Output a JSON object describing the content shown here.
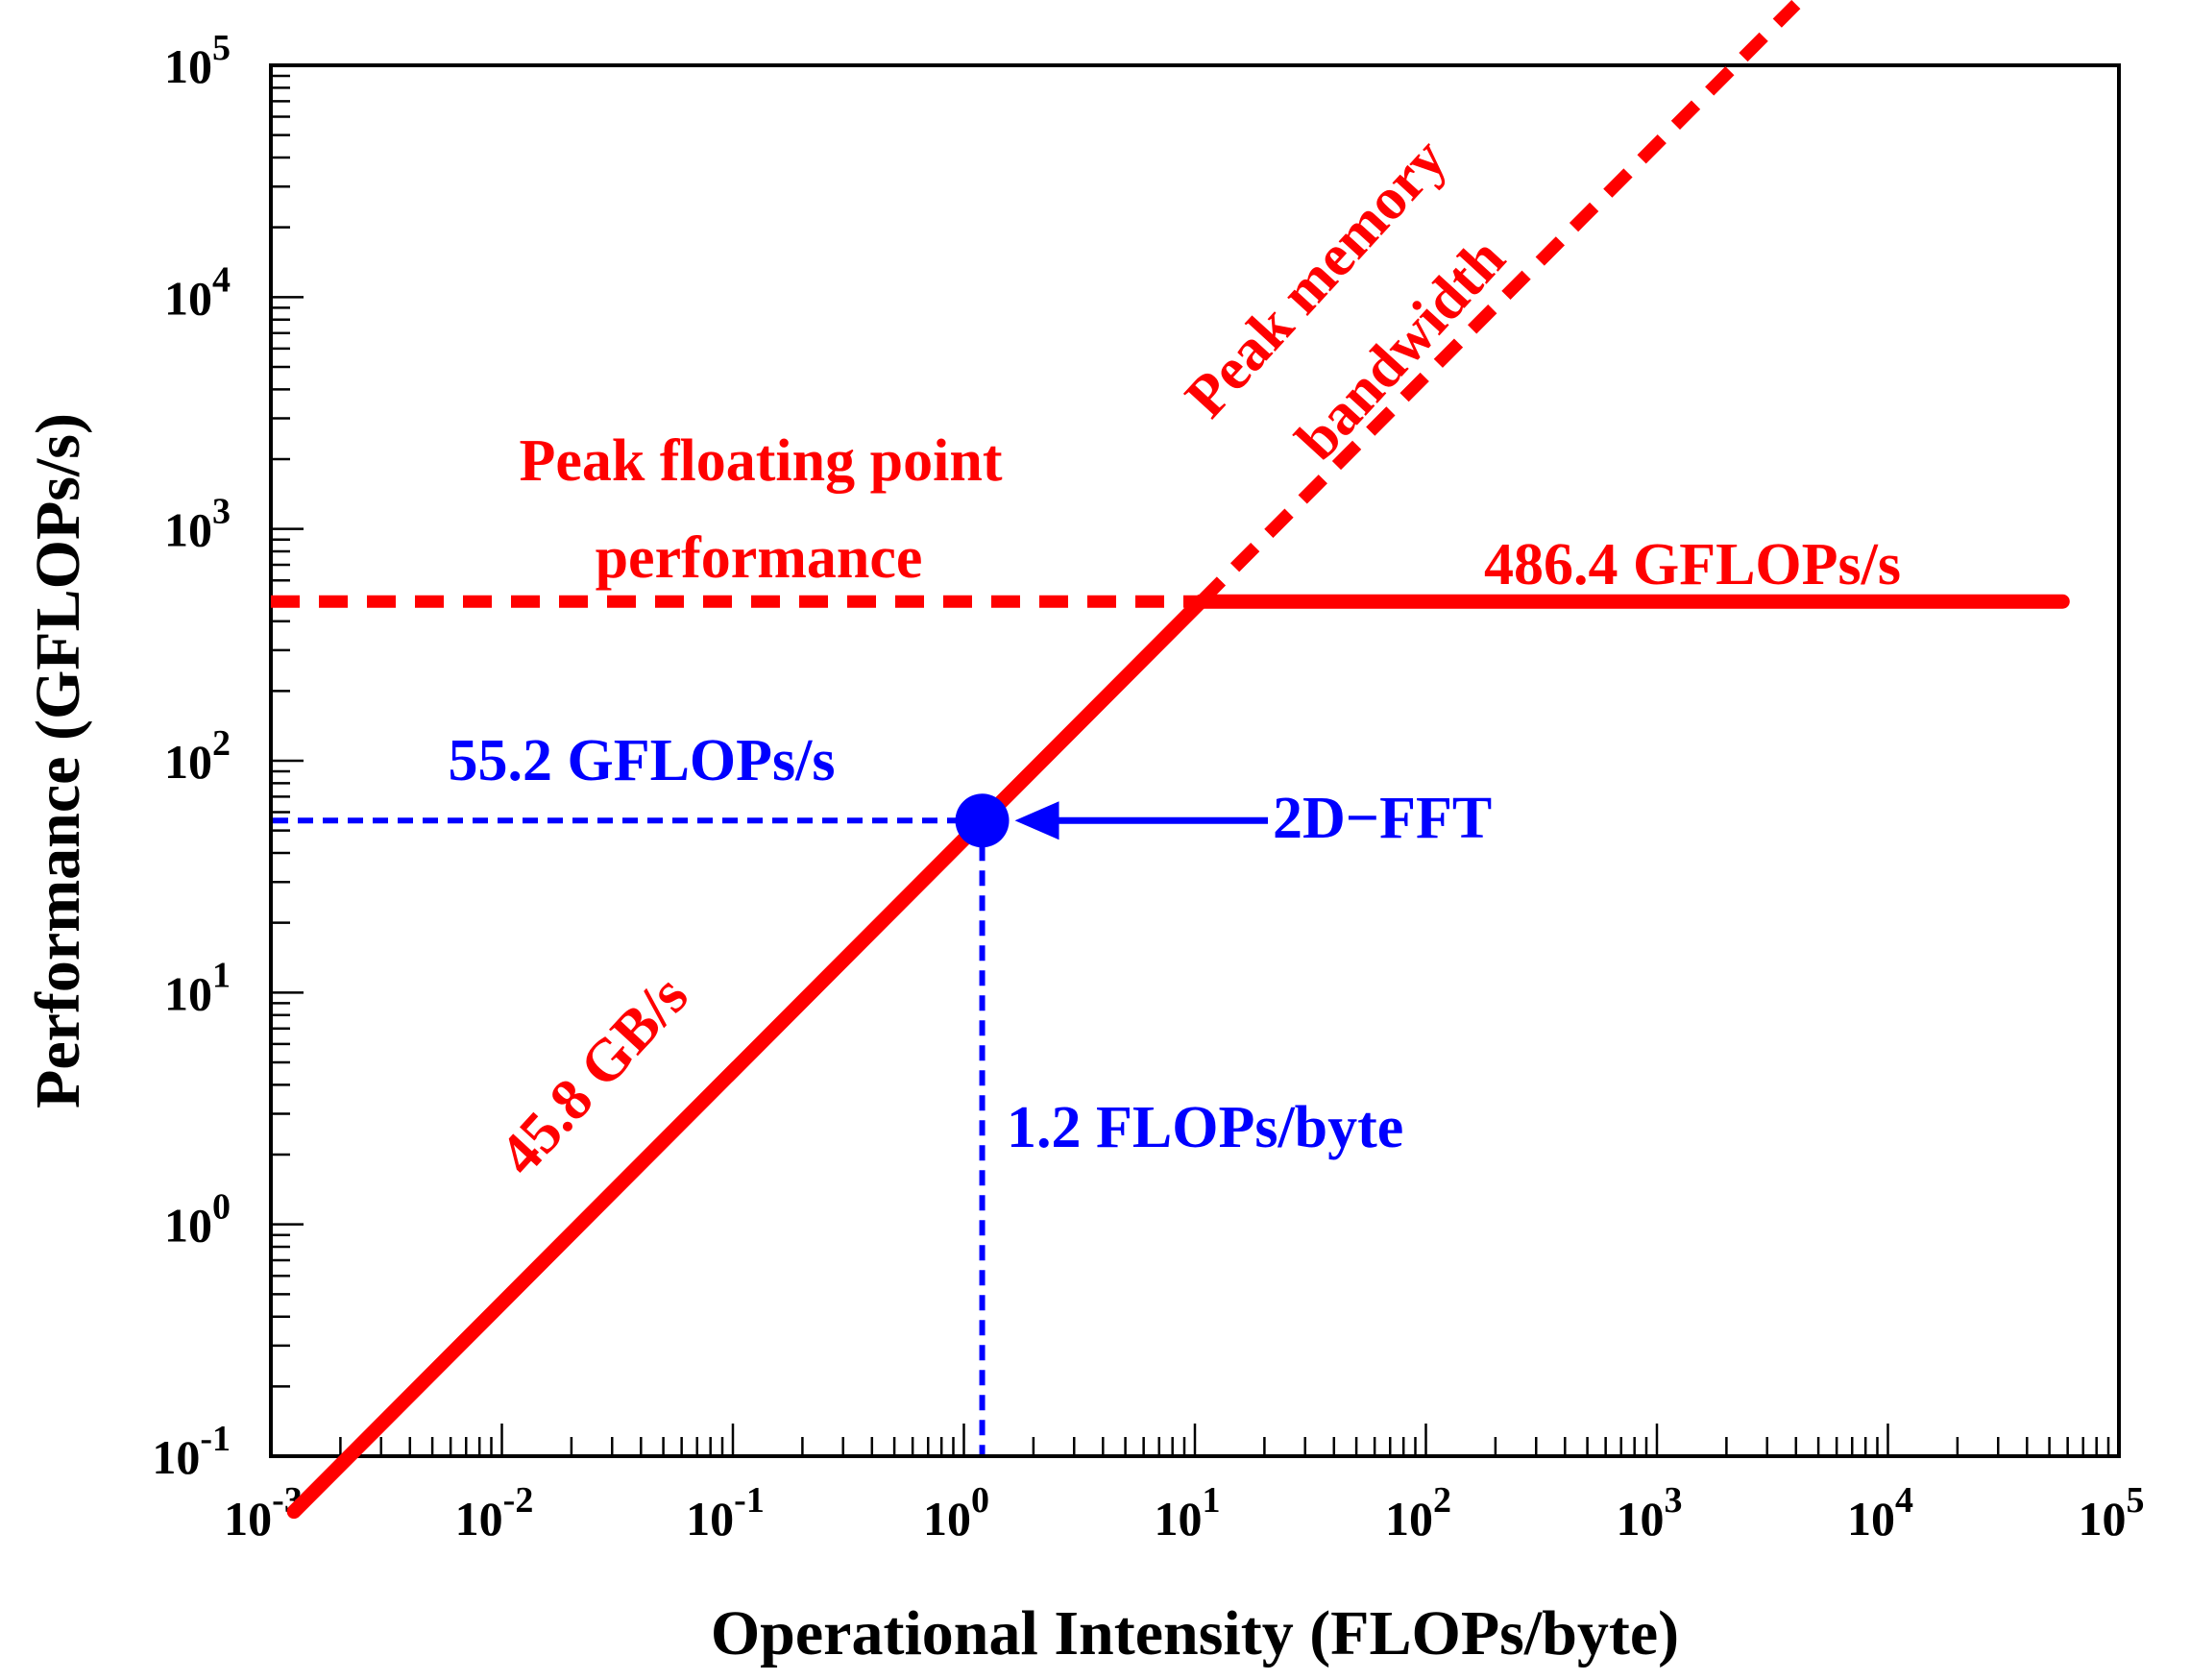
{
  "chart_data": {
    "type": "line",
    "title": "",
    "xlabel": "Operational Intensity (FLOPs/byte)",
    "ylabel": "Performance (GFLOPs/s)",
    "xscale": "log",
    "yscale": "log",
    "xlim_exp": [
      -3,
      5
    ],
    "ylim_exp": [
      -1,
      5
    ],
    "x_tick_labels": [
      {
        "base": "10",
        "exp": "-3"
      },
      {
        "base": "10",
        "exp": "-2"
      },
      {
        "base": "10",
        "exp": "-1"
      },
      {
        "base": "10",
        "exp": "0"
      },
      {
        "base": "10",
        "exp": "1"
      },
      {
        "base": "10",
        "exp": "2"
      },
      {
        "base": "10",
        "exp": "3"
      },
      {
        "base": "10",
        "exp": "4"
      },
      {
        "base": "10",
        "exp": "5"
      }
    ],
    "y_tick_labels": [
      {
        "base": "10",
        "exp": "-1"
      },
      {
        "base": "10",
        "exp": "0"
      },
      {
        "base": "10",
        "exp": "1"
      },
      {
        "base": "10",
        "exp": "2"
      },
      {
        "base": "10",
        "exp": "3"
      },
      {
        "base": "10",
        "exp": "4"
      },
      {
        "base": "10",
        "exp": "5"
      }
    ],
    "peak_compute_gflops": 486.4,
    "peak_bandwidth_gbs": 45.8,
    "series": [
      {
        "name": "memory-bound roof",
        "style": "solid",
        "color": "#ff0000",
        "x": [
          0.00126,
          10.62
        ],
        "y": [
          0.0577,
          486.4
        ]
      },
      {
        "name": "compute-bound roof",
        "style": "solid",
        "color": "#ff0000",
        "x": [
          10.62,
          57000
        ],
        "y": [
          486.4,
          486.4
        ]
      },
      {
        "name": "peak floating point extension",
        "style": "dashed",
        "color": "#ff0000",
        "x": [
          0.001,
          10.62
        ],
        "y": [
          486.4,
          486.4
        ]
      },
      {
        "name": "peak memory bandwidth extension",
        "style": "dashed",
        "color": "#ff0000",
        "x": [
          10.62,
          4000
        ],
        "y": [
          486.4,
          183200
        ]
      }
    ],
    "point": {
      "name": "2D-FFT",
      "x": 1.2,
      "y": 55.2,
      "color": "#0000ff"
    },
    "annotations": {
      "peak_fp_line1": "Peak floating point",
      "peak_fp_line2": "performance",
      "peak_mem_line1": "Peak memory",
      "peak_mem_line2": "bandwidth",
      "peak_value": "486.4 GFLOPs/s",
      "bandwidth_value": "45.8 GB/s",
      "point_perf": "55.2 GFLOPs/s",
      "point_label": "2D−FFT",
      "point_oi": "1.2 FLOPs/byte"
    }
  }
}
